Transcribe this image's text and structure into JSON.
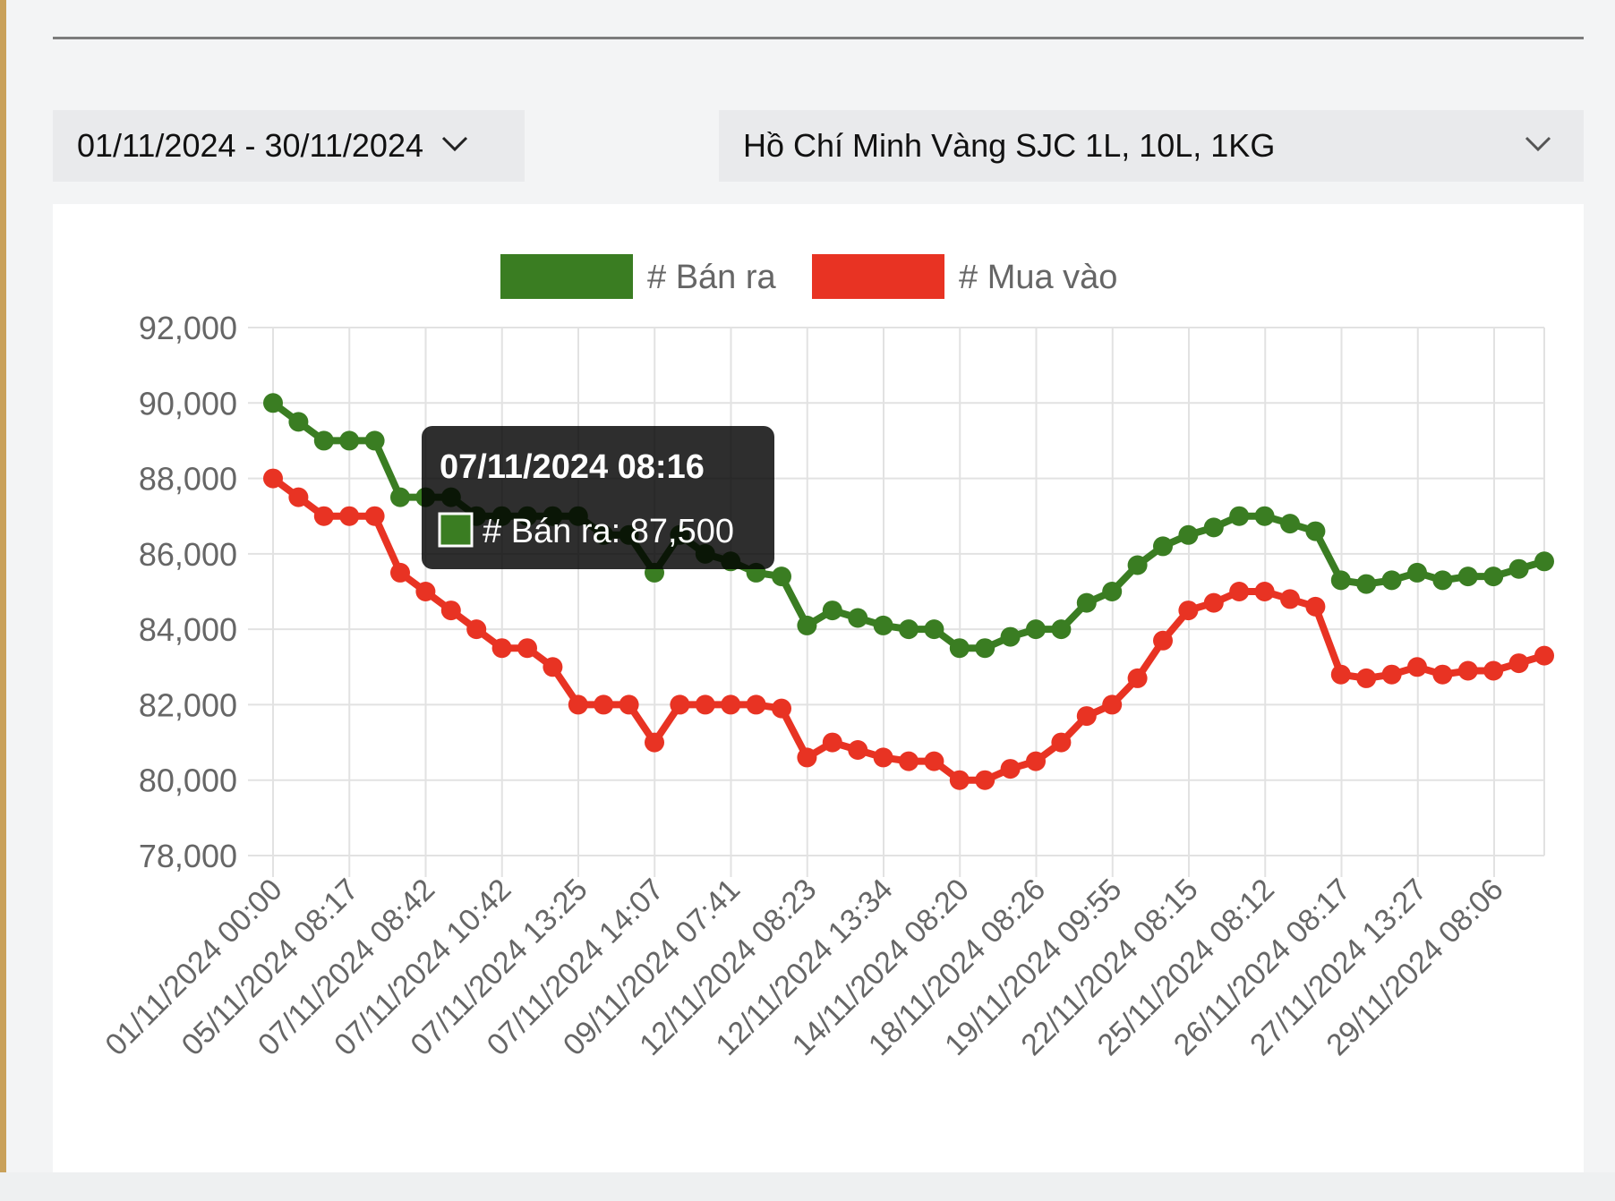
{
  "filters": {
    "date_range": "01/11/2024 - 30/11/2024",
    "product": "Hồ Chí Minh Vàng SJC 1L, 10L, 1KG"
  },
  "chart_data": {
    "type": "line",
    "title": "",
    "xlabel": "",
    "ylabel": "",
    "ylim": [
      78000,
      92000
    ],
    "yticks": [
      "92,000",
      "90,000",
      "88,000",
      "86,000",
      "84,000",
      "82,000",
      "80,000",
      "78,000"
    ],
    "xticks": [
      "01/11/2024 00:00",
      "05/11/2024 08:17",
      "07/11/2024 08:42",
      "07/11/2024 10:42",
      "07/11/2024 13:25",
      "07/11/2024 14:07",
      "09/11/2024 07:41",
      "12/11/2024 08:23",
      "12/11/2024 13:34",
      "14/11/2024 08:20",
      "18/11/2024 08:26",
      "19/11/2024 09:55",
      "22/11/2024 08:15",
      "25/11/2024 08:12",
      "26/11/2024 08:17",
      "27/11/2024 13:27",
      "29/11/2024 08:06"
    ],
    "grid": true,
    "legend_position": "top",
    "series": [
      {
        "name": "# Bán ra",
        "color": "#3a7d22",
        "values": [
          90000,
          89500,
          89000,
          89000,
          89000,
          87500,
          87500,
          87500,
          87000,
          87000,
          87000,
          87000,
          87000,
          86500,
          86500,
          85500,
          86500,
          86000,
          85800,
          85500,
          85400,
          84100,
          84500,
          84300,
          84100,
          84000,
          84000,
          83500,
          83500,
          83800,
          84000,
          84000,
          84700,
          85000,
          85700,
          86200,
          86500,
          86700,
          87000,
          87000,
          86800,
          86600,
          85300,
          85200,
          85300,
          85500,
          85300,
          85400,
          85400,
          85600,
          85800
        ]
      },
      {
        "name": "# Mua vào",
        "color": "#e83323",
        "values": [
          88000,
          87500,
          87000,
          87000,
          87000,
          85500,
          85000,
          84500,
          84000,
          83500,
          83500,
          83000,
          82000,
          82000,
          82000,
          81000,
          82000,
          82000,
          82000,
          82000,
          81900,
          80600,
          81000,
          80800,
          80600,
          80500,
          80500,
          80000,
          80000,
          80300,
          80500,
          81000,
          81700,
          82000,
          82700,
          83700,
          84500,
          84700,
          85000,
          85000,
          84800,
          84600,
          82800,
          82700,
          82800,
          83000,
          82800,
          82900,
          82900,
          83100,
          83300
        ]
      }
    ],
    "tooltip": {
      "title": "07/11/2024 08:16",
      "series": "# Bán ra",
      "value_label": "87,500",
      "point_index": 6
    }
  }
}
